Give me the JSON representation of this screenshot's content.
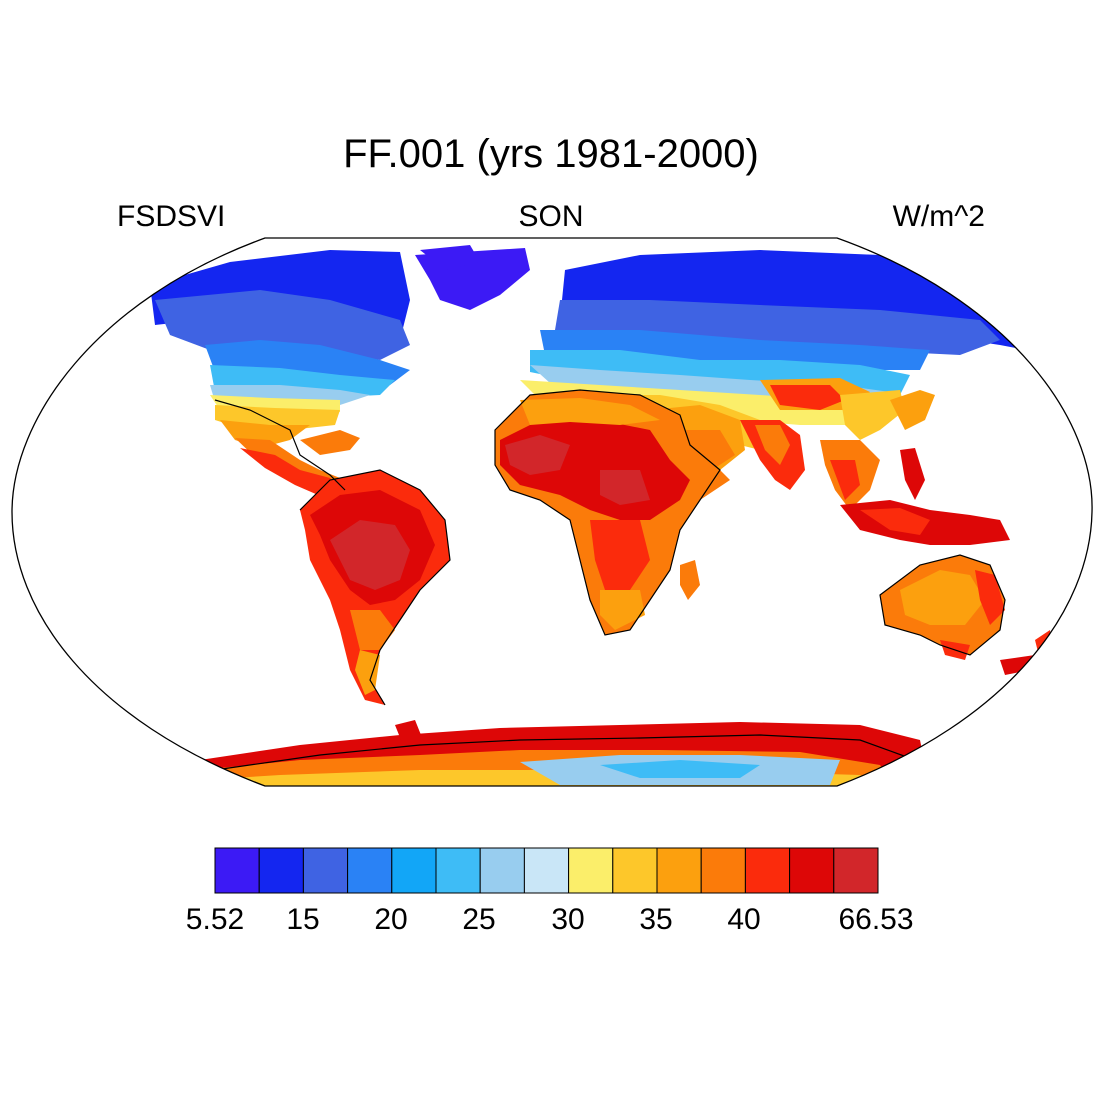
{
  "title": "FF.001 (yrs 1981-2000)",
  "subtitle_left": "FSDSVI",
  "subtitle_center": "SON",
  "subtitle_right": "W/m^2",
  "colorbar": {
    "colors": [
      "#3c1af5",
      "#1426f0",
      "#3f63e3",
      "#2a82f5",
      "#12a6f7",
      "#3ebcf6",
      "#98cdef",
      "#c9e6f7",
      "#fbee6a",
      "#fdc72a",
      "#fca00e",
      "#fb7b0a",
      "#fb2b0c",
      "#dd0707",
      "#d2262a"
    ],
    "labels": [
      {
        "text": "5.52",
        "boundary": 0
      },
      {
        "text": "15",
        "boundary": 1
      },
      {
        "text": "20",
        "boundary": 2
      },
      {
        "text": "25",
        "boundary": 3
      },
      {
        "text": "30",
        "boundary": 4
      },
      {
        "text": "35",
        "boundary": 5
      },
      {
        "text": "40",
        "boundary": 6
      },
      {
        "text": "66.53",
        "boundary": 7.5
      }
    ]
  },
  "map_fields": {
    "projection": "Robinson",
    "regions": [
      "north-america",
      "greenland",
      "europe-asia",
      "africa",
      "south-america",
      "australia",
      "antarctica",
      "indonesia",
      "new-zealand",
      "arabia",
      "india"
    ]
  }
}
